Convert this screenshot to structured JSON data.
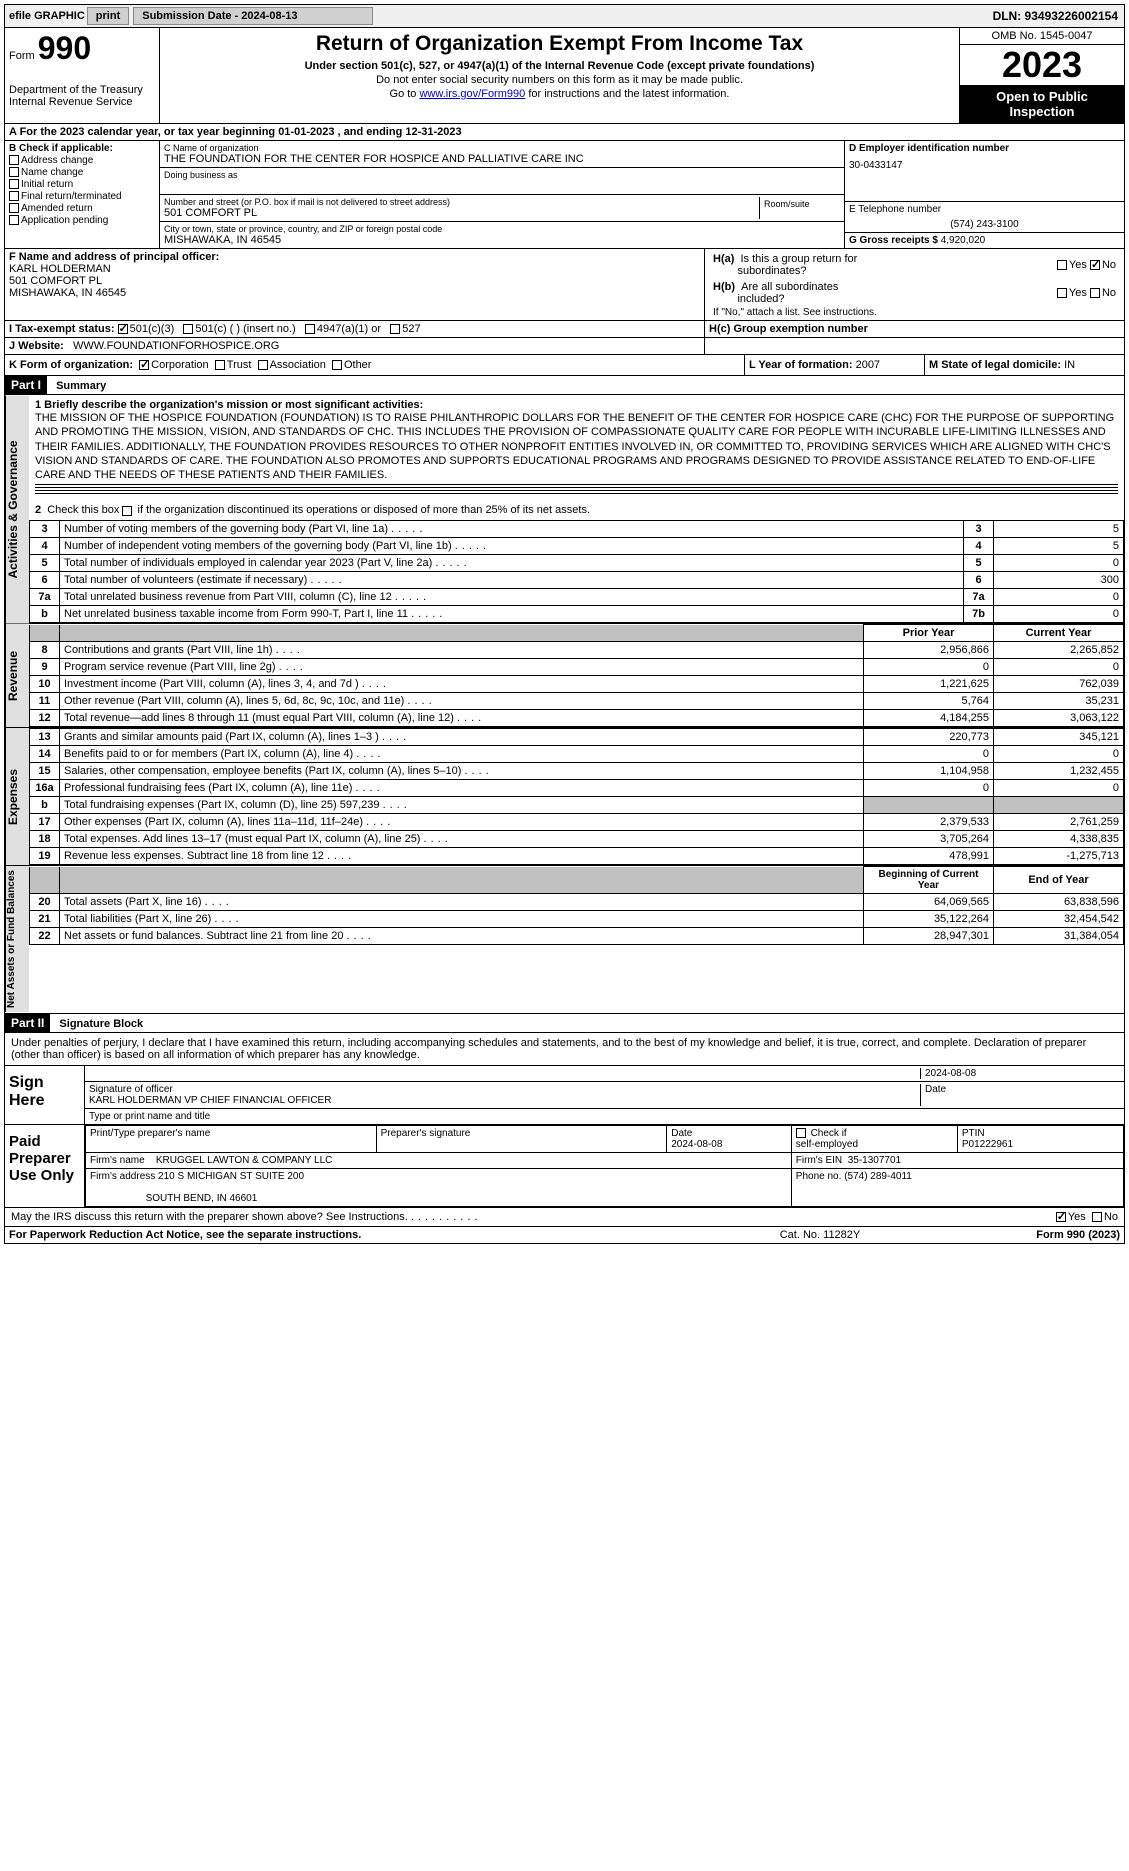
{
  "topbar": {
    "efile": "efile GRAPHIC",
    "print": "print",
    "sub_date_label": "Submission Date - 2024-08-13",
    "dln": "DLN: 93493226002154"
  },
  "header": {
    "form_label": "Form",
    "form_num": "990",
    "dept": "Department of the Treasury\nInternal Revenue Service",
    "title": "Return of Organization Exempt From Income Tax",
    "subtitle": "Under section 501(c), 527, or 4947(a)(1) of the Internal Revenue Code (except private foundations)",
    "note1": "Do not enter social security numbers on this form as it may be made public.",
    "note2_pre": "Go to ",
    "note2_link": "www.irs.gov/Form990",
    "note2_post": " for instructions and the latest information.",
    "omb": "OMB No. 1545-0047",
    "year": "2023",
    "public": "Open to Public Inspection"
  },
  "row_a": "A For the 2023 calendar year, or tax year beginning 01-01-2023    , and ending 12-31-2023",
  "col_b": {
    "label": "B Check if applicable:",
    "addr": "Address change",
    "name": "Name change",
    "initial": "Initial return",
    "final": "Final return/terminated",
    "amended": "Amended return",
    "app": "Application pending"
  },
  "org": {
    "c_label": "C Name of organization",
    "name": "THE FOUNDATION FOR THE CENTER FOR HOSPICE AND PALLIATIVE CARE INC",
    "dba_label": "Doing business as",
    "street_label": "Number and street (or P.O. box if mail is not delivered to street address)",
    "street": "501 COMFORT PL",
    "room_label": "Room/suite",
    "city_label": "City or town, state or province, country, and ZIP or foreign postal code",
    "city": "MISHAWAKA, IN  46545"
  },
  "right_col": {
    "d_label": "D Employer identification number",
    "ein": "30-0433147",
    "e_label": "E Telephone number",
    "phone": "(574) 243-3100",
    "g_label": "G Gross receipts $",
    "gross": "4,920,020"
  },
  "officer": {
    "f_label": "F Name and address of principal officer:",
    "name": "KARL HOLDERMAN",
    "addr1": "501 COMFORT PL",
    "addr2": "MISHAWAKA, IN  46545"
  },
  "h_section": {
    "ha": "H(a)  Is this a group return for subordinates?",
    "hb": "H(b)  Are all subordinates included?",
    "hb_note": "If \"No,\" attach a list. See instructions.",
    "hc": "H(c)  Group exemption number",
    "yes": "Yes",
    "no": "No"
  },
  "tax_status": {
    "i_label": "I    Tax-exempt status:",
    "s501c3": "501(c)(3)",
    "s501c": "501(c) ( ) (insert no.)",
    "s4947": "4947(a)(1) or",
    "s527": "527"
  },
  "website": {
    "j_label": "J   Website:",
    "url": "WWW.FOUNDATIONFORHOSPICE.ORG"
  },
  "k_row": {
    "label": "K Form of organization:",
    "corp": "Corporation",
    "trust": "Trust",
    "assoc": "Association",
    "other": "Other"
  },
  "l_row": {
    "label": "L Year of formation:",
    "value": "2007"
  },
  "m_row": {
    "label": "M State of legal domicile:",
    "value": "IN"
  },
  "part1": {
    "header": "Part I",
    "title": "Summary",
    "side_ag": "Activities & Governance",
    "side_rev": "Revenue",
    "side_exp": "Expenses",
    "side_net": "Net Assets or Fund Balances",
    "line1_label": "1  Briefly describe the organization's mission or most significant activities:",
    "mission": "THE MISSION OF THE HOSPICE FOUNDATION (FOUNDATION) IS TO RAISE PHILANTHROPIC DOLLARS FOR THE BENEFIT OF THE CENTER FOR HOSPICE CARE (CHC) FOR THE PURPOSE OF SUPPORTING AND PROMOTING THE MISSION, VISION, AND STANDARDS OF CHC. THIS INCLUDES THE PROVISION OF COMPASSIONATE QUALITY CARE FOR PEOPLE WITH INCURABLE LIFE-LIMITING ILLNESSES AND THEIR FAMILIES. ADDITIONALLY, THE FOUNDATION PROVIDES RESOURCES TO OTHER NONPROFIT ENTITIES INVOLVED IN, OR COMMITTED TO, PROVIDING SERVICES WHICH ARE ALIGNED WITH CHC'S VISION AND STANDARDS OF CARE. THE FOUNDATION ALSO PROMOTES AND SUPPORTS EDUCATIONAL PROGRAMS AND PROGRAMS DESIGNED TO PROVIDE ASSISTANCE RELATED TO END-OF-LIFE CARE AND THE NEEDS OF THESE PATIENTS AND THEIR FAMILIES.",
    "line2": "2   Check this box         if the organization discontinued its operations or disposed of more than 25% of its net assets.",
    "lines_ag": [
      {
        "n": "3",
        "label": "Number of voting members of the governing body (Part VI, line 1a)",
        "box": "3",
        "val": "5"
      },
      {
        "n": "4",
        "label": "Number of independent voting members of the governing body (Part VI, line 1b)",
        "box": "4",
        "val": "5"
      },
      {
        "n": "5",
        "label": "Total number of individuals employed in calendar year 2023 (Part V, line 2a)",
        "box": "5",
        "val": "0"
      },
      {
        "n": "6",
        "label": "Total number of volunteers (estimate if necessary)",
        "box": "6",
        "val": "300"
      },
      {
        "n": "7a",
        "label": "Total unrelated business revenue from Part VIII, column (C), line 12",
        "box": "7a",
        "val": "0"
      },
      {
        "n": "b",
        "label": "Net unrelated business taxable income from Form 990-T, Part I, line 11",
        "box": "7b",
        "val": "0"
      }
    ],
    "hdr_prior": "Prior Year",
    "hdr_current": "Current Year",
    "lines_rev": [
      {
        "n": "8",
        "label": "Contributions and grants (Part VIII, line 1h)",
        "prior": "2,956,866",
        "curr": "2,265,852"
      },
      {
        "n": "9",
        "label": "Program service revenue (Part VIII, line 2g)",
        "prior": "0",
        "curr": "0"
      },
      {
        "n": "10",
        "label": "Investment income (Part VIII, column (A), lines 3, 4, and 7d )",
        "prior": "1,221,625",
        "curr": "762,039"
      },
      {
        "n": "11",
        "label": "Other revenue (Part VIII, column (A), lines 5, 6d, 8c, 9c, 10c, and 11e)",
        "prior": "5,764",
        "curr": "35,231"
      },
      {
        "n": "12",
        "label": "Total revenue—add lines 8 through 11 (must equal Part VIII, column (A), line 12)",
        "prior": "4,184,255",
        "curr": "3,063,122"
      }
    ],
    "lines_exp": [
      {
        "n": "13",
        "label": "Grants and similar amounts paid (Part IX, column (A), lines 1–3 )",
        "prior": "220,773",
        "curr": "345,121"
      },
      {
        "n": "14",
        "label": "Benefits paid to or for members (Part IX, column (A), line 4)",
        "prior": "0",
        "curr": "0"
      },
      {
        "n": "15",
        "label": "Salaries, other compensation, employee benefits (Part IX, column (A), lines 5–10)",
        "prior": "1,104,958",
        "curr": "1,232,455"
      },
      {
        "n": "16a",
        "label": "Professional fundraising fees (Part IX, column (A), line 11e)",
        "prior": "0",
        "curr": "0"
      },
      {
        "n": "b",
        "label": "Total fundraising expenses (Part IX, column (D), line 25) 597,239",
        "prior": "",
        "curr": "",
        "grey": true
      },
      {
        "n": "17",
        "label": "Other expenses (Part IX, column (A), lines 11a–11d, 11f–24e)",
        "prior": "2,379,533",
        "curr": "2,761,259"
      },
      {
        "n": "18",
        "label": "Total expenses. Add lines 13–17 (must equal Part IX, column (A), line 25)",
        "prior": "3,705,264",
        "curr": "4,338,835"
      },
      {
        "n": "19",
        "label": "Revenue less expenses. Subtract line 18 from line 12",
        "prior": "478,991",
        "curr": "-1,275,713"
      }
    ],
    "hdr_beg": "Beginning of Current Year",
    "hdr_end": "End of Year",
    "lines_net": [
      {
        "n": "20",
        "label": "Total assets (Part X, line 16)",
        "prior": "64,069,565",
        "curr": "63,838,596"
      },
      {
        "n": "21",
        "label": "Total liabilities (Part X, line 26)",
        "prior": "35,122,264",
        "curr": "32,454,542"
      },
      {
        "n": "22",
        "label": "Net assets or fund balances. Subtract line 21 from line 20",
        "prior": "28,947,301",
        "curr": "31,384,054"
      }
    ]
  },
  "part2": {
    "header": "Part II",
    "title": "Signature Block",
    "intro": "Under penalties of perjury, I declare that I have examined this return, including accompanying schedules and statements, and to the best of my knowledge and belief, it is true, correct, and complete. Declaration of preparer (other than officer) is based on all information of which preparer has any knowledge.",
    "sign_here": "Sign Here",
    "sig_date": "2024-08-08",
    "sig_officer_label": "Signature of officer",
    "sig_officer": "KARL HOLDERMAN  VP CHIEF FINANCIAL OFFICER",
    "sig_type_label": "Type or print name and title",
    "date_label": "Date",
    "paid": "Paid Preparer Use Only",
    "prep_name_label": "Print/Type preparer's name",
    "prep_sig_label": "Preparer's signature",
    "prep_date": "2024-08-08",
    "prep_check": "Check         if self-employed",
    "ptin_label": "PTIN",
    "ptin": "P01222961",
    "firm_name_label": "Firm's name",
    "firm_name": "KRUGGEL LAWTON & COMPANY LLC",
    "firm_ein_label": "Firm's EIN",
    "firm_ein": "35-1307701",
    "firm_addr_label": "Firm's address",
    "firm_addr1": "210 S MICHIGAN ST SUITE 200",
    "firm_addr2": "SOUTH BEND, IN  46601",
    "firm_phone_label": "Phone no.",
    "firm_phone": "(574) 289-4011",
    "discuss": "May the IRS discuss this return with the preparer shown above? See Instructions."
  },
  "footer": {
    "left": "For Paperwork Reduction Act Notice, see the separate instructions.",
    "center": "Cat. No. 11282Y",
    "right": "Form 990 (2023)"
  }
}
